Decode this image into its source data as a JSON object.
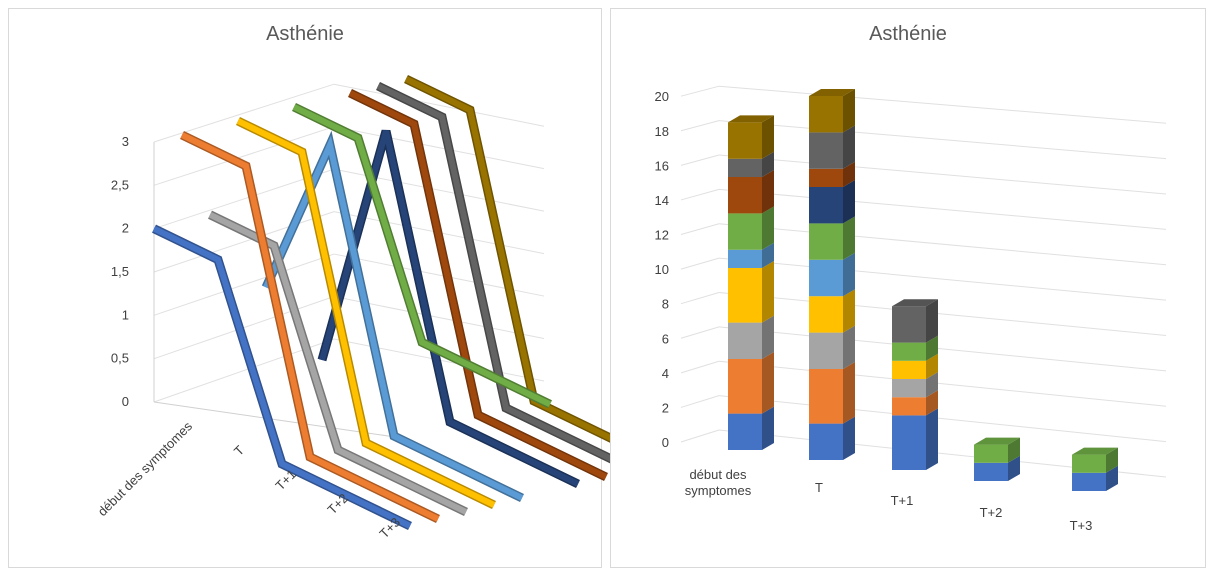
{
  "chart_data": [
    {
      "type": "line",
      "title": "Asthénie",
      "categories": [
        "début des symptomes",
        "T",
        "T+1",
        "T+2",
        "T+3"
      ],
      "yticks": [
        "0",
        "0,5",
        "1",
        "1,5",
        "2",
        "2,5",
        "3"
      ],
      "ylim": [
        0,
        3
      ],
      "series": [
        {
          "values": [
            2,
            2,
            0,
            0,
            0
          ],
          "color": "#4472c4"
        },
        {
          "values": [
            3,
            3,
            0,
            0,
            0
          ],
          "color": "#ed7d31"
        },
        {
          "values": [
            2,
            2,
            0,
            0,
            0
          ],
          "color": "#a5a5a5"
        },
        {
          "values": [
            3,
            3,
            0,
            0,
            0
          ],
          "color": "#ffc000"
        },
        {
          "values": [
            1,
            3,
            0,
            0,
            0
          ],
          "color": "#5b9bd5"
        },
        {
          "values": [
            3,
            3,
            1,
            1,
            1
          ],
          "color": "#70ad47"
        },
        {
          "values": [
            0,
            3,
            0,
            0,
            0
          ],
          "color": "#264478"
        },
        {
          "values": [
            3,
            3,
            0,
            0,
            0
          ],
          "color": "#9e480e"
        },
        {
          "values": [
            3,
            3,
            0,
            0,
            0
          ],
          "color": "#636363"
        },
        {
          "values": [
            3,
            3,
            0,
            0,
            0
          ],
          "color": "#997300"
        }
      ]
    },
    {
      "type": "bar",
      "stacked": true,
      "title": "Asthénie",
      "categories": [
        "début des symptomes",
        "T",
        "T+1",
        "T+2",
        "T+3"
      ],
      "category_labels": [
        [
          "début des",
          "symptomes"
        ],
        [
          "T"
        ],
        [
          "T+1"
        ],
        [
          "T+2"
        ],
        [
          "T+3"
        ]
      ],
      "yticks": [
        "0",
        "2",
        "4",
        "6",
        "8",
        "10",
        "12",
        "14",
        "16",
        "18",
        "20"
      ],
      "ylim": [
        0,
        20
      ],
      "series": [
        {
          "values": [
            2,
            2,
            3,
            1,
            1
          ],
          "color": "#4472c4"
        },
        {
          "values": [
            3,
            3,
            1,
            0,
            0
          ],
          "color": "#ed7d31"
        },
        {
          "values": [
            2,
            2,
            1,
            0,
            0
          ],
          "color": "#a5a5a5"
        },
        {
          "values": [
            3,
            2,
            1,
            0,
            0
          ],
          "color": "#ffc000"
        },
        {
          "values": [
            1,
            2,
            0,
            0,
            0
          ],
          "color": "#5b9bd5"
        },
        {
          "values": [
            2,
            2,
            1,
            1,
            1
          ],
          "color": "#70ad47"
        },
        {
          "values": [
            0,
            2,
            0,
            0,
            0
          ],
          "color": "#264478"
        },
        {
          "values": [
            2,
            1,
            0,
            0,
            0
          ],
          "color": "#9e480e"
        },
        {
          "values": [
            1,
            2,
            2,
            0,
            0
          ],
          "color": "#636363"
        },
        {
          "values": [
            2,
            2,
            0,
            0,
            0
          ],
          "color": "#997300"
        }
      ]
    }
  ]
}
